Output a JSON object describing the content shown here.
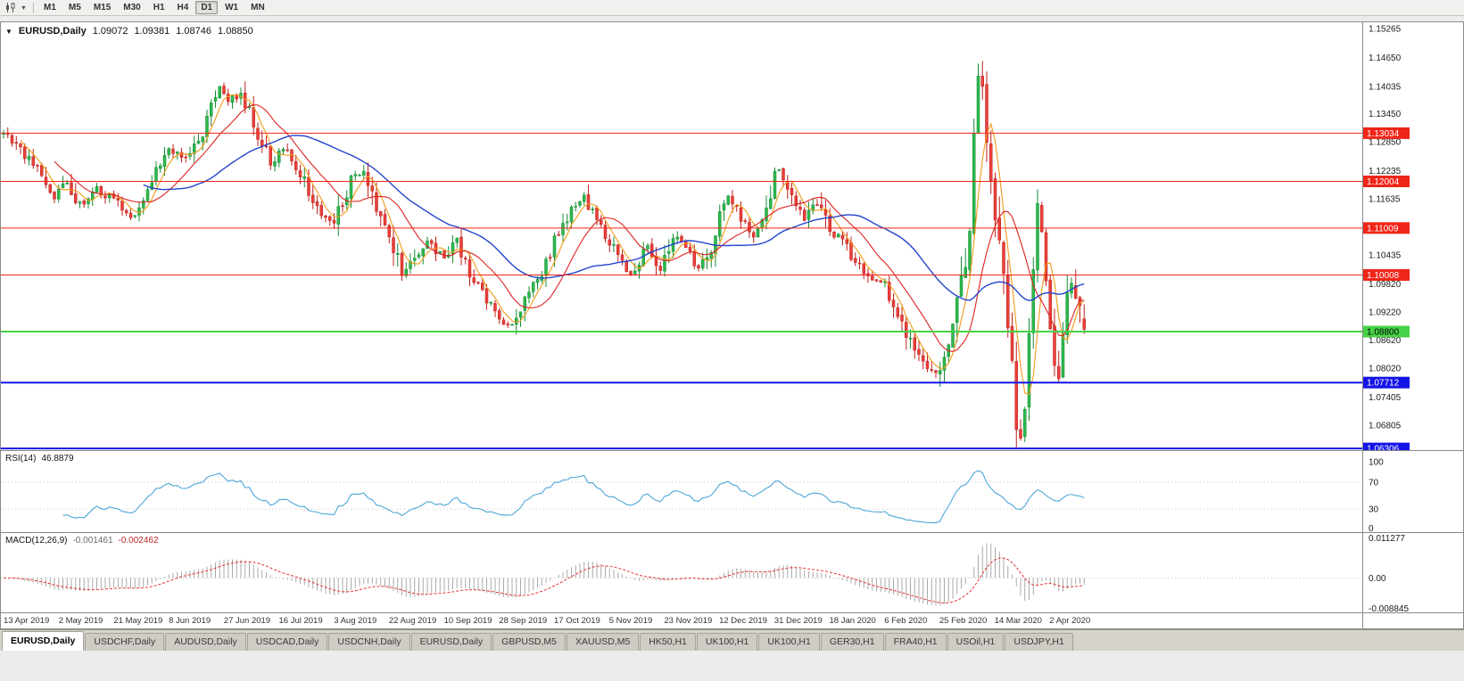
{
  "toolbar": {
    "dropdown_caret": "▾",
    "timeframes": [
      {
        "label": "M1",
        "active": false
      },
      {
        "label": "M5",
        "active": false
      },
      {
        "label": "M15",
        "active": false
      },
      {
        "label": "M30",
        "active": false
      },
      {
        "label": "H1",
        "active": false
      },
      {
        "label": "H4",
        "active": false
      },
      {
        "label": "D1",
        "active": true
      },
      {
        "label": "W1",
        "active": false
      },
      {
        "label": "MN",
        "active": false
      }
    ]
  },
  "chart": {
    "marker": "▼",
    "symbol": "EURUSD,Daily",
    "open": "1.09072",
    "high": "1.09381",
    "low": "1.08746",
    "close": "1.08850"
  },
  "price_scale": {
    "ticks": [
      "1.15265",
      "1.14650",
      "1.14035",
      "1.13450",
      "1.12850",
      "1.12235",
      "1.11635",
      "1.10435",
      "1.09820",
      "1.09220",
      "1.08620",
      "1.08020",
      "1.07405",
      "1.06805"
    ],
    "line_labels": [
      {
        "text": "1.13034",
        "bg": "#f02519",
        "fg": "#ffffff"
      },
      {
        "text": "1.12004",
        "bg": "#f02519",
        "fg": "#ffffff"
      },
      {
        "text": "1.11009",
        "bg": "#f02519",
        "fg": "#ffffff"
      },
      {
        "text": "1.10008",
        "bg": "#f02519",
        "fg": "#ffffff"
      },
      {
        "text": "1.08800",
        "bg": "#46d246",
        "fg": "#000000"
      },
      {
        "text": "1.07712",
        "bg": "#1414e6",
        "fg": "#ffffff"
      },
      {
        "text": "1.06306",
        "bg": "#1414e6",
        "fg": "#ffffff"
      }
    ]
  },
  "rsi": {
    "label": "RSI(14)",
    "value": "46.8879",
    "scale": [
      "100",
      "70",
      "30",
      "0"
    ],
    "color": "#4da6d9"
  },
  "macd": {
    "label": "MACD(12,26,9)",
    "value_main": "-0.001461",
    "value_signal": "-0.002462",
    "scale": [
      "0.011277",
      "0.00",
      "-0.008845"
    ],
    "histogram_color": "#a8a8a8",
    "signal_color": "#e83030"
  },
  "dates": [
    "13 Apr 2019",
    "2 May 2019",
    "21 May 2019",
    "8 Jun 2019",
    "27 Jun 2019",
    "16 Jul 2019",
    "3 Aug 2019",
    "22 Aug 2019",
    "10 Sep 2019",
    "28 Sep 2019",
    "17 Oct 2019",
    "5 Nov 2019",
    "23 Nov 2019",
    "12 Dec 2019",
    "31 Dec 2019",
    "18 Jan 2020",
    "6 Feb 2020",
    "25 Feb 2020",
    "14 Mar 2020",
    "2 Apr 2020"
  ],
  "tabs": [
    {
      "label": "EURUSD,Daily",
      "active": true
    },
    {
      "label": "USDCHF,Daily",
      "active": false
    },
    {
      "label": "AUDUSD,Daily",
      "active": false
    },
    {
      "label": "USDCAD,Daily",
      "active": false
    },
    {
      "label": "USDCNH,Daily",
      "active": false
    },
    {
      "label": "EURUSD,Daily",
      "active": false
    },
    {
      "label": "GBPUSD,M5",
      "active": false
    },
    {
      "label": "XAUUSD,M5",
      "active": false
    },
    {
      "label": "HK50,H1",
      "active": false
    },
    {
      "label": "UK100,H1",
      "active": false
    },
    {
      "label": "UK100,H1",
      "active": false
    },
    {
      "label": "GER30,H1",
      "active": false
    },
    {
      "label": "FRA40,H1",
      "active": false
    },
    {
      "label": "USOil,H1",
      "active": false
    },
    {
      "label": "USDJPY,H1",
      "active": false
    }
  ],
  "chart_data": {
    "type": "candlestick",
    "symbol": "EURUSD",
    "timeframe": "D1",
    "bars": 256,
    "x_label_step": 13,
    "ylim": [
      1.0627,
      1.154
    ],
    "last_candle": {
      "open": 1.09072,
      "high": 1.09381,
      "low": 1.08746,
      "close": 1.0885
    },
    "price_path_anchors": [
      [
        0,
        1.13
      ],
      [
        4,
        1.127
      ],
      [
        8,
        1.1225
      ],
      [
        12,
        1.116
      ],
      [
        15,
        1.12
      ],
      [
        18,
        1.115
      ],
      [
        22,
        1.1185
      ],
      [
        26,
        1.116
      ],
      [
        30,
        1.1125
      ],
      [
        34,
        1.118
      ],
      [
        39,
        1.127
      ],
      [
        43,
        1.1245
      ],
      [
        47,
        1.131
      ],
      [
        51,
        1.14
      ],
      [
        53,
        1.137
      ],
      [
        56,
        1.139
      ],
      [
        60,
        1.13
      ],
      [
        63,
        1.124
      ],
      [
        66,
        1.127
      ],
      [
        70,
        1.1215
      ],
      [
        74,
        1.114
      ],
      [
        78,
        1.111
      ],
      [
        82,
        1.1205
      ],
      [
        85,
        1.123
      ],
      [
        88,
        1.115
      ],
      [
        91,
        1.1085
      ],
      [
        94,
        1.1
      ],
      [
        97,
        1.104
      ],
      [
        100,
        1.1075
      ],
      [
        104,
        1.1035
      ],
      [
        107,
        1.1075
      ],
      [
        110,
        1.101
      ],
      [
        113,
        1.0965
      ],
      [
        117,
        1.0905
      ],
      [
        120,
        1.0895
      ],
      [
        124,
        1.0965
      ],
      [
        127,
        1.0995
      ],
      [
        130,
        1.107
      ],
      [
        134,
        1.114
      ],
      [
        137,
        1.1165
      ],
      [
        140,
        1.112
      ],
      [
        143,
        1.107
      ],
      [
        146,
        1.103
      ],
      [
        148,
        1.1005
      ],
      [
        152,
        1.106
      ],
      [
        155,
        1.101
      ],
      [
        158,
        1.108
      ],
      [
        161,
        1.106
      ],
      [
        164,
        1.1015
      ],
      [
        167,
        1.106
      ],
      [
        169,
        1.113
      ],
      [
        171,
        1.117
      ],
      [
        174,
        1.112
      ],
      [
        177,
        1.108
      ],
      [
        180,
        1.115
      ],
      [
        183,
        1.123
      ],
      [
        186,
        1.116
      ],
      [
        189,
        1.112
      ],
      [
        192,
        1.1155
      ],
      [
        195,
        1.109
      ],
      [
        198,
        1.108
      ],
      [
        201,
        1.103
      ],
      [
        204,
        1.1
      ],
      [
        208,
        1.098
      ],
      [
        211,
        1.092
      ],
      [
        214,
        1.086
      ],
      [
        217,
        1.082
      ],
      [
        220,
        1.0785
      ],
      [
        222,
        1.083
      ],
      [
        224,
        1.088
      ],
      [
        226,
        1.0985
      ],
      [
        228,
        1.109
      ],
      [
        229,
        1.13
      ],
      [
        230,
        1.145
      ],
      [
        231,
        1.139
      ],
      [
        232,
        1.13
      ],
      [
        233,
        1.12
      ],
      [
        234,
        1.113
      ],
      [
        236,
        1.099
      ],
      [
        238,
        1.08
      ],
      [
        239,
        1.068
      ],
      [
        240,
        1.066
      ],
      [
        241,
        1.072
      ],
      [
        242,
        1.087
      ],
      [
        243,
        1.102
      ],
      [
        244,
        1.114
      ],
      [
        245,
        1.108
      ],
      [
        246,
        1.099
      ],
      [
        247,
        1.09
      ],
      [
        248,
        1.08
      ],
      [
        249,
        1.079
      ],
      [
        250,
        1.086
      ],
      [
        251,
        1.095
      ],
      [
        252,
        1.099
      ],
      [
        253,
        1.096
      ],
      [
        254,
        1.092
      ],
      [
        255,
        1.0885
      ]
    ],
    "horizontal_lines": [
      {
        "price": 1.13034,
        "color": "#f02519",
        "width": 1
      },
      {
        "price": 1.12004,
        "color": "#f02519",
        "width": 1
      },
      {
        "price": 1.11009,
        "color": "#f02519",
        "width": 1
      },
      {
        "price": 1.10008,
        "color": "#f02519",
        "width": 1
      },
      {
        "price": 1.088,
        "color": "#46d246",
        "width": 2
      },
      {
        "price": 1.07712,
        "color": "#1414e6",
        "width": 2
      },
      {
        "price": 1.06306,
        "color": "#1414e6",
        "width": 2
      }
    ],
    "moving_averages": [
      {
        "period": 5,
        "color": "#f29a18"
      },
      {
        "period": 13,
        "color": "#dd2222"
      },
      {
        "period": 34,
        "color": "#2244cc"
      }
    ],
    "candle_colors": {
      "up_fill": "#2db84d",
      "up_stroke": "#178c33",
      "down_fill": "#e8403a",
      "down_stroke": "#bf211c"
    },
    "indicators": {
      "rsi": {
        "period": 14,
        "current": 46.8879,
        "levels": [
          70,
          30
        ],
        "range": [
          0,
          100
        ]
      },
      "macd": {
        "fast": 12,
        "slow": 26,
        "signal": 9,
        "current_macd": -0.001461,
        "current_signal": -0.002462,
        "range": [
          -0.008845,
          0.011277
        ]
      }
    }
  }
}
